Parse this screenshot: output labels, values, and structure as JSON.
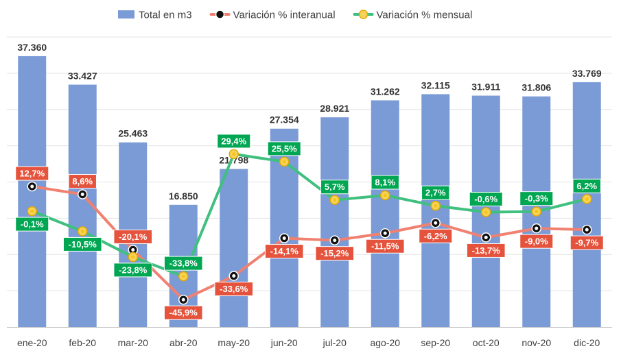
{
  "chart_data": {
    "type": "bar",
    "title": "",
    "xlabel": "",
    "ylabel": "",
    "ylim": [
      0,
      40000
    ],
    "pct_range": [
      -60,
      90
    ],
    "grid": true,
    "legend_position": "top-center",
    "categories": [
      "ene-20",
      "feb-20",
      "mar-20",
      "abr-20",
      "may-20",
      "jun-20",
      "jul-20",
      "ago-20",
      "sep-20",
      "oct-20",
      "nov-20",
      "dic-20"
    ],
    "series": [
      {
        "name": "Total en m3",
        "kind": "bar",
        "color": "#7b9bd6",
        "values": [
          37360,
          33427,
          25463,
          16850,
          21798,
          27354,
          28921,
          31262,
          32115,
          31911,
          31806,
          33769
        ],
        "labels": [
          "37.360",
          "33.427",
          "25.463",
          "16.850",
          "21.798",
          "27.354",
          "28.921",
          "31.262",
          "32.115",
          "31.911",
          "31.806",
          "33.769"
        ]
      },
      {
        "name": "Variación % interanual",
        "kind": "line",
        "color": "#f08070",
        "label_bg": "#e5533d",
        "marker": "#111111",
        "values": [
          12.7,
          8.6,
          -20.1,
          -45.9,
          -33.6,
          -14.1,
          -15.2,
          -11.5,
          -6.2,
          -13.7,
          -9.0,
          -9.7
        ],
        "labels": [
          "12,7%",
          "8,6%",
          "-20,1%",
          "-45,9%",
          "-33,6%",
          "-14,1%",
          "-15,2%",
          "-11,5%",
          "-6,2%",
          "-13,7%",
          "-9,0%",
          "-9,7%"
        ]
      },
      {
        "name": "Variación % mensual",
        "kind": "line",
        "color": "#3fc07f",
        "label_bg": "#00a651",
        "marker": "#f5c518",
        "values": [
          -0.1,
          -10.5,
          -23.8,
          -33.8,
          29.4,
          25.5,
          5.7,
          8.1,
          2.7,
          -0.6,
          -0.3,
          6.2
        ],
        "labels": [
          "-0,1%",
          "-10,5%",
          "-23,8%",
          "-33,8%",
          "29,4%",
          "25,5%",
          "5,7%",
          "8,1%",
          "2,7%",
          "-0,6%",
          "-0,3%",
          "6,2%"
        ]
      }
    ]
  }
}
